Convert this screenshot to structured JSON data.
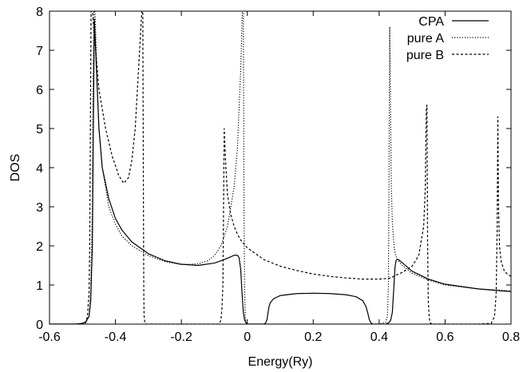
{
  "chart_data": {
    "type": "line",
    "xlabel": "Energy(Ry)",
    "ylabel": "DOS",
    "xlim": [
      -0.6,
      0.8
    ],
    "ylim": [
      0,
      8
    ],
    "x_ticks": [
      -0.6,
      -0.4,
      -0.2,
      0,
      0.2,
      0.4,
      0.6,
      0.8
    ],
    "x_tick_labels": [
      "-0.6",
      "-0.4",
      "-0.2",
      "0",
      "0.2",
      "0.4",
      "0.6",
      "0.8"
    ],
    "y_ticks": [
      0,
      1,
      2,
      3,
      4,
      5,
      6,
      7,
      8
    ],
    "y_tick_labels": [
      "0",
      "1",
      "2",
      "3",
      "4",
      "5",
      "6",
      "7",
      "8"
    ],
    "grid": false,
    "legend_position": "top-right",
    "series": [
      {
        "name": "CPA",
        "style": "solid",
        "x": [
          -0.6,
          -0.52,
          -0.5,
          -0.49,
          -0.48,
          -0.475,
          -0.47,
          -0.467,
          -0.464,
          -0.46,
          -0.45,
          -0.44,
          -0.42,
          -0.4,
          -0.38,
          -0.35,
          -0.3,
          -0.25,
          -0.2,
          -0.15,
          -0.1,
          -0.07,
          -0.05,
          -0.04,
          -0.03,
          -0.025,
          -0.02,
          -0.016,
          -0.012,
          -0.008,
          -0.004,
          0.0,
          0.02,
          0.05,
          0.055,
          0.06,
          0.063,
          0.066,
          0.07,
          0.08,
          0.1,
          0.15,
          0.2,
          0.25,
          0.3,
          0.33,
          0.35,
          0.36,
          0.365,
          0.37,
          0.375,
          0.38,
          0.4,
          0.42,
          0.43,
          0.435,
          0.44,
          0.445,
          0.448,
          0.451,
          0.455,
          0.46,
          0.47,
          0.5,
          0.55,
          0.6,
          0.7,
          0.8
        ],
        "y": [
          0.0,
          0.0,
          0.02,
          0.06,
          0.2,
          0.6,
          2.0,
          5.0,
          7.8,
          7.0,
          5.0,
          4.0,
          3.2,
          2.7,
          2.4,
          2.1,
          1.8,
          1.62,
          1.53,
          1.5,
          1.56,
          1.65,
          1.72,
          1.76,
          1.76,
          1.7,
          1.4,
          0.8,
          0.3,
          0.1,
          0.03,
          0.0,
          0.0,
          0.0,
          0.02,
          0.12,
          0.3,
          0.45,
          0.55,
          0.65,
          0.73,
          0.78,
          0.79,
          0.78,
          0.75,
          0.7,
          0.6,
          0.45,
          0.3,
          0.12,
          0.03,
          0.0,
          0.0,
          0.0,
          0.04,
          0.1,
          0.3,
          1.0,
          1.45,
          1.62,
          1.66,
          1.64,
          1.57,
          1.35,
          1.15,
          1.02,
          0.9,
          0.83
        ]
      },
      {
        "name": "pure A",
        "style": "dotted",
        "x": [
          -0.6,
          -0.51,
          -0.49,
          -0.48,
          -0.475,
          -0.47,
          -0.468,
          -0.465,
          -0.462,
          -0.46,
          -0.455,
          -0.45,
          -0.44,
          -0.42,
          -0.4,
          -0.38,
          -0.35,
          -0.3,
          -0.25,
          -0.2,
          -0.15,
          -0.12,
          -0.1,
          -0.08,
          -0.06,
          -0.04,
          -0.03,
          -0.02,
          -0.015,
          -0.012,
          -0.01,
          -0.008,
          -0.006,
          -0.004,
          0.0,
          0.1,
          0.2,
          0.3,
          0.4,
          0.42,
          0.425,
          0.428,
          0.43,
          0.432,
          0.434,
          0.437,
          0.44,
          0.445,
          0.45,
          0.46,
          0.47,
          0.5,
          0.55,
          0.6,
          0.7,
          0.8
        ],
        "y": [
          0.0,
          0.0,
          0.03,
          0.2,
          0.8,
          3.0,
          6.0,
          8.0,
          8.0,
          7.5,
          6.0,
          5.0,
          4.0,
          3.0,
          2.55,
          2.25,
          2.0,
          1.75,
          1.6,
          1.52,
          1.54,
          1.62,
          1.75,
          2.0,
          2.5,
          3.5,
          4.5,
          6.5,
          8.0,
          8.0,
          3.0,
          0.8,
          0.2,
          0.05,
          0.0,
          0.0,
          0.0,
          0.0,
          0.0,
          0.05,
          0.2,
          1.0,
          4.0,
          7.6,
          6.0,
          3.5,
          2.6,
          2.0,
          1.75,
          1.6,
          1.5,
          1.3,
          1.12,
          1.0,
          0.9,
          0.85
        ]
      },
      {
        "name": "pure B",
        "style": "dashed",
        "x": [
          -0.6,
          -0.5,
          -0.49,
          -0.485,
          -0.48,
          -0.478,
          -0.476,
          -0.474,
          -0.47,
          -0.46,
          -0.45,
          -0.43,
          -0.41,
          -0.39,
          -0.375,
          -0.36,
          -0.35,
          -0.34,
          -0.33,
          -0.32,
          -0.317,
          -0.315,
          -0.314,
          -0.313,
          -0.311,
          -0.309,
          -0.305,
          -0.3,
          -0.28,
          -0.25,
          -0.2,
          -0.15,
          -0.1,
          -0.09,
          -0.085,
          -0.08,
          -0.077,
          -0.074,
          -0.072,
          -0.07,
          -0.065,
          -0.06,
          -0.05,
          -0.04,
          -0.03,
          -0.02,
          0.0,
          0.05,
          0.1,
          0.15,
          0.2,
          0.25,
          0.3,
          0.35,
          0.4,
          0.43,
          0.44,
          0.45,
          0.47,
          0.5,
          0.52,
          0.535,
          0.54,
          0.543,
          0.545,
          0.547,
          0.549,
          0.552,
          0.555,
          0.56,
          0.6,
          0.7,
          0.74,
          0.75,
          0.755,
          0.758,
          0.76,
          0.762,
          0.765,
          0.77,
          0.78,
          0.79,
          0.8
        ],
        "y": [
          0.0,
          0.0,
          0.05,
          0.2,
          0.8,
          2.0,
          5.0,
          8.0,
          8.0,
          7.0,
          6.0,
          5.0,
          4.3,
          3.8,
          3.6,
          3.75,
          4.2,
          5.0,
          6.5,
          8.0,
          8.0,
          3.0,
          0.8,
          0.2,
          0.05,
          0.01,
          0.0,
          0.0,
          0.0,
          0.0,
          0.0,
          0.0,
          0.0,
          0.0,
          0.02,
          0.1,
          0.4,
          1.0,
          3.0,
          5.0,
          4.0,
          3.3,
          2.8,
          2.5,
          2.3,
          2.15,
          1.95,
          1.65,
          1.48,
          1.37,
          1.28,
          1.22,
          1.18,
          1.15,
          1.15,
          1.17,
          1.2,
          1.25,
          1.32,
          1.48,
          1.75,
          2.5,
          3.5,
          5.5,
          5.6,
          2.0,
          0.6,
          0.15,
          0.03,
          0.0,
          0.0,
          0.0,
          0.02,
          0.2,
          0.8,
          2.5,
          5.3,
          3.0,
          2.0,
          1.6,
          1.35,
          1.27,
          1.22
        ]
      }
    ]
  }
}
